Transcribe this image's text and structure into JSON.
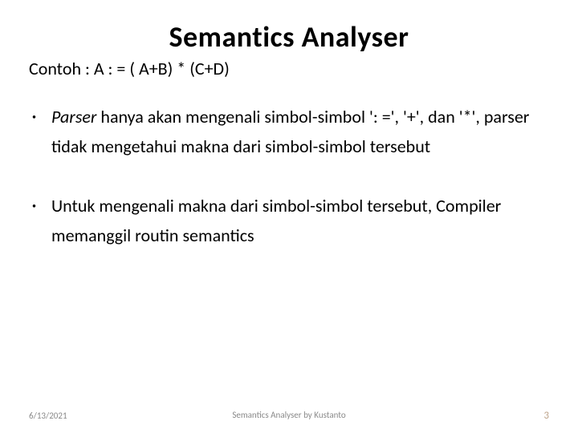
{
  "slide": {
    "title": "Semantics Analyser",
    "subtitle": "Contoh :  A : = ( A+B) * (C+D)",
    "bullets": [
      {
        "emphasis": "Parser",
        "rest": "  hanya akan mengenali simbol-simbol ': =', '+', dan '*', parser tidak mengetahui makna dari simbol-simbol tersebut"
      },
      {
        "emphasis": "",
        "rest": "Untuk mengenali makna dari simbol-simbol tersebut, Compiler memanggil routin semantics"
      }
    ]
  },
  "footer": {
    "date": "6/13/2021",
    "center": "Semantics Analyser by Kustanto",
    "page": "3"
  },
  "style": {
    "title_fontsize": 36,
    "subtitle_fontsize": 22,
    "body_fontsize": 22,
    "footer_fontsize": 11,
    "page_number_color": "#bfa78f",
    "footer_text_color": "#8a8a8a",
    "text_color": "#000000",
    "background_color": "#ffffff"
  }
}
